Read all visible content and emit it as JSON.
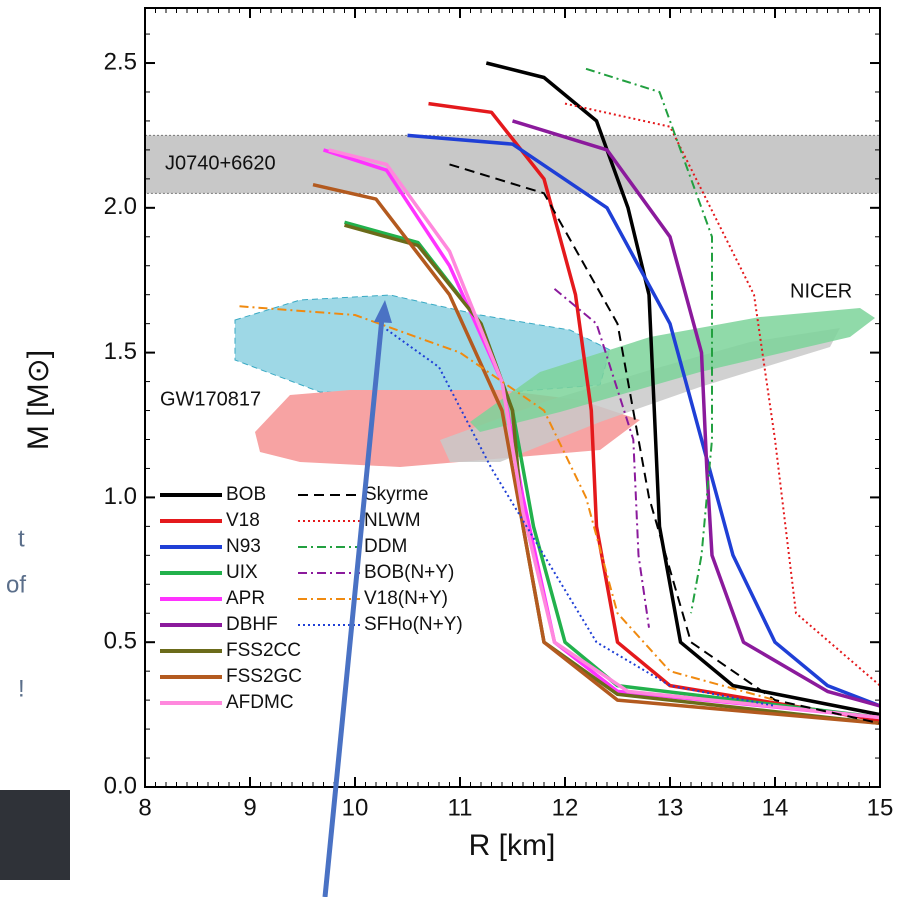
{
  "chart_data": {
    "type": "line",
    "x_label": "R [km]",
    "y_label": "M [M⊙]",
    "xlim": [
      8,
      15
    ],
    "ylim": [
      0,
      2.69
    ],
    "xticks": [
      8,
      9,
      10,
      11,
      12,
      13,
      14,
      15
    ],
    "yticks": [
      {
        "value": 0,
        "label": "0.0"
      },
      0.5,
      {
        "value": 1,
        "label": "1.0"
      },
      1.5,
      {
        "value": 2,
        "label": "2.0"
      },
      2.5
    ],
    "band": {
      "label": "J0740+6620",
      "range": [
        2.05,
        2.25
      ]
    },
    "region_labels": [
      "GW170817",
      "NICER"
    ],
    "series": [
      {
        "name": "BOB",
        "color": "#000000",
        "style": "solid",
        "x": [
          11.25,
          11.8,
          12.3,
          12.6,
          12.8,
          12.85,
          12.9,
          13.1,
          13.6,
          15
        ],
        "values": [
          2.5,
          2.45,
          2.3,
          2.0,
          1.7,
          1.3,
          0.9,
          0.5,
          0.35,
          0.25
        ]
      },
      {
        "name": "V18",
        "color": "#e4191c",
        "style": "solid",
        "x": [
          10.7,
          11.3,
          11.8,
          12.1,
          12.25,
          12.3,
          12.5,
          13,
          15
        ],
        "values": [
          2.36,
          2.33,
          2.1,
          1.7,
          1.3,
          0.9,
          0.5,
          0.35,
          0.23
        ]
      },
      {
        "name": "N93",
        "color": "#1f3fd6",
        "style": "solid",
        "x": [
          10.5,
          11.5,
          12.4,
          13.0,
          13.3,
          13.6,
          14.0,
          14.5,
          15
        ],
        "values": [
          2.25,
          2.22,
          2.0,
          1.6,
          1.2,
          0.8,
          0.5,
          0.35,
          0.28
        ]
      },
      {
        "name": "UIX",
        "color": "#22b14c",
        "style": "solid",
        "x": [
          9.9,
          10.6,
          11.2,
          11.5,
          11.7,
          12.0,
          12.5,
          15
        ],
        "values": [
          1.95,
          1.88,
          1.6,
          1.3,
          0.9,
          0.5,
          0.35,
          0.24
        ]
      },
      {
        "name": "APR",
        "color": "#ff33ff",
        "style": "solid",
        "x": [
          9.7,
          10.3,
          10.9,
          11.4,
          11.6,
          11.9,
          12.5,
          15
        ],
        "values": [
          2.2,
          2.13,
          1.8,
          1.4,
          1.0,
          0.5,
          0.33,
          0.24
        ]
      },
      {
        "name": "DBHF",
        "color": "#8b1a9c",
        "style": "solid",
        "x": [
          11.5,
          12.4,
          13.0,
          13.3,
          13.35,
          13.4,
          13.7,
          14.5,
          15
        ],
        "values": [
          2.3,
          2.2,
          1.9,
          1.5,
          1.1,
          0.8,
          0.5,
          0.33,
          0.28
        ]
      },
      {
        "name": "FSS2CC",
        "color": "#6b6b1a",
        "style": "solid",
        "x": [
          9.9,
          10.6,
          11.2,
          11.5,
          11.6,
          11.8,
          12.5,
          15
        ],
        "values": [
          1.94,
          1.87,
          1.6,
          1.3,
          0.9,
          0.5,
          0.32,
          0.22
        ]
      },
      {
        "name": "FSS2GC",
        "color": "#b35a1f",
        "style": "solid",
        "x": [
          9.6,
          10.2,
          10.9,
          11.4,
          11.6,
          11.8,
          12.5,
          15
        ],
        "values": [
          2.08,
          2.03,
          1.7,
          1.3,
          0.9,
          0.5,
          0.3,
          0.22
        ]
      },
      {
        "name": "AFDMC",
        "color": "#ff88dd",
        "style": "solid",
        "x": [
          9.75,
          10.3,
          10.9,
          11.4,
          11.6,
          11.9,
          12.6,
          15
        ],
        "values": [
          2.2,
          2.15,
          1.85,
          1.4,
          0.95,
          0.5,
          0.33,
          0.24
        ]
      },
      {
        "name": "Skyrme",
        "color": "#000000",
        "style": "dashed",
        "x": [
          10.9,
          11.8,
          12.5,
          12.8,
          13.2,
          14,
          15
        ],
        "values": [
          2.15,
          2.05,
          1.6,
          1.0,
          0.5,
          0.3,
          0.22
        ]
      },
      {
        "name": "NLWM",
        "color": "#e4191c",
        "style": "dotted",
        "x": [
          12,
          13,
          13.8,
          14,
          14.2,
          15
        ],
        "values": [
          2.36,
          2.28,
          1.7,
          1.2,
          0.6,
          0.35
        ]
      },
      {
        "name": "DDM",
        "color": "#22a040",
        "style": "dashdot",
        "x": [
          12.2,
          12.9,
          13.4,
          13.4,
          13.3,
          13.2
        ],
        "values": [
          2.48,
          2.4,
          1.9,
          1.2,
          0.8,
          0.6
        ]
      },
      {
        "name": "BOB(N+Y)",
        "color": "#8b1a9c",
        "style": "dashdot",
        "x": [
          11.9,
          12.3,
          12.65,
          12.7,
          12.8
        ],
        "values": [
          1.72,
          1.6,
          1.2,
          0.8,
          0.55
        ]
      },
      {
        "name": "V18(N+Y)",
        "color": "#f08a10",
        "style": "dashdot",
        "x": [
          8.9,
          10,
          11,
          11.8,
          12.2,
          12.5,
          13,
          14
        ],
        "values": [
          1.66,
          1.63,
          1.5,
          1.3,
          1.0,
          0.6,
          0.4,
          0.3
        ]
      },
      {
        "name": "SFHo(N+Y)",
        "color": "#1f3fd6",
        "style": "dotted",
        "x": [
          10.3,
          10.8,
          11.3,
          11.8,
          12.3,
          13,
          14
        ],
        "values": [
          1.58,
          1.45,
          1.1,
          0.8,
          0.5,
          0.35,
          0.28
        ]
      }
    ]
  },
  "slide_fragments": [
    "t",
    "of",
    "!"
  ]
}
